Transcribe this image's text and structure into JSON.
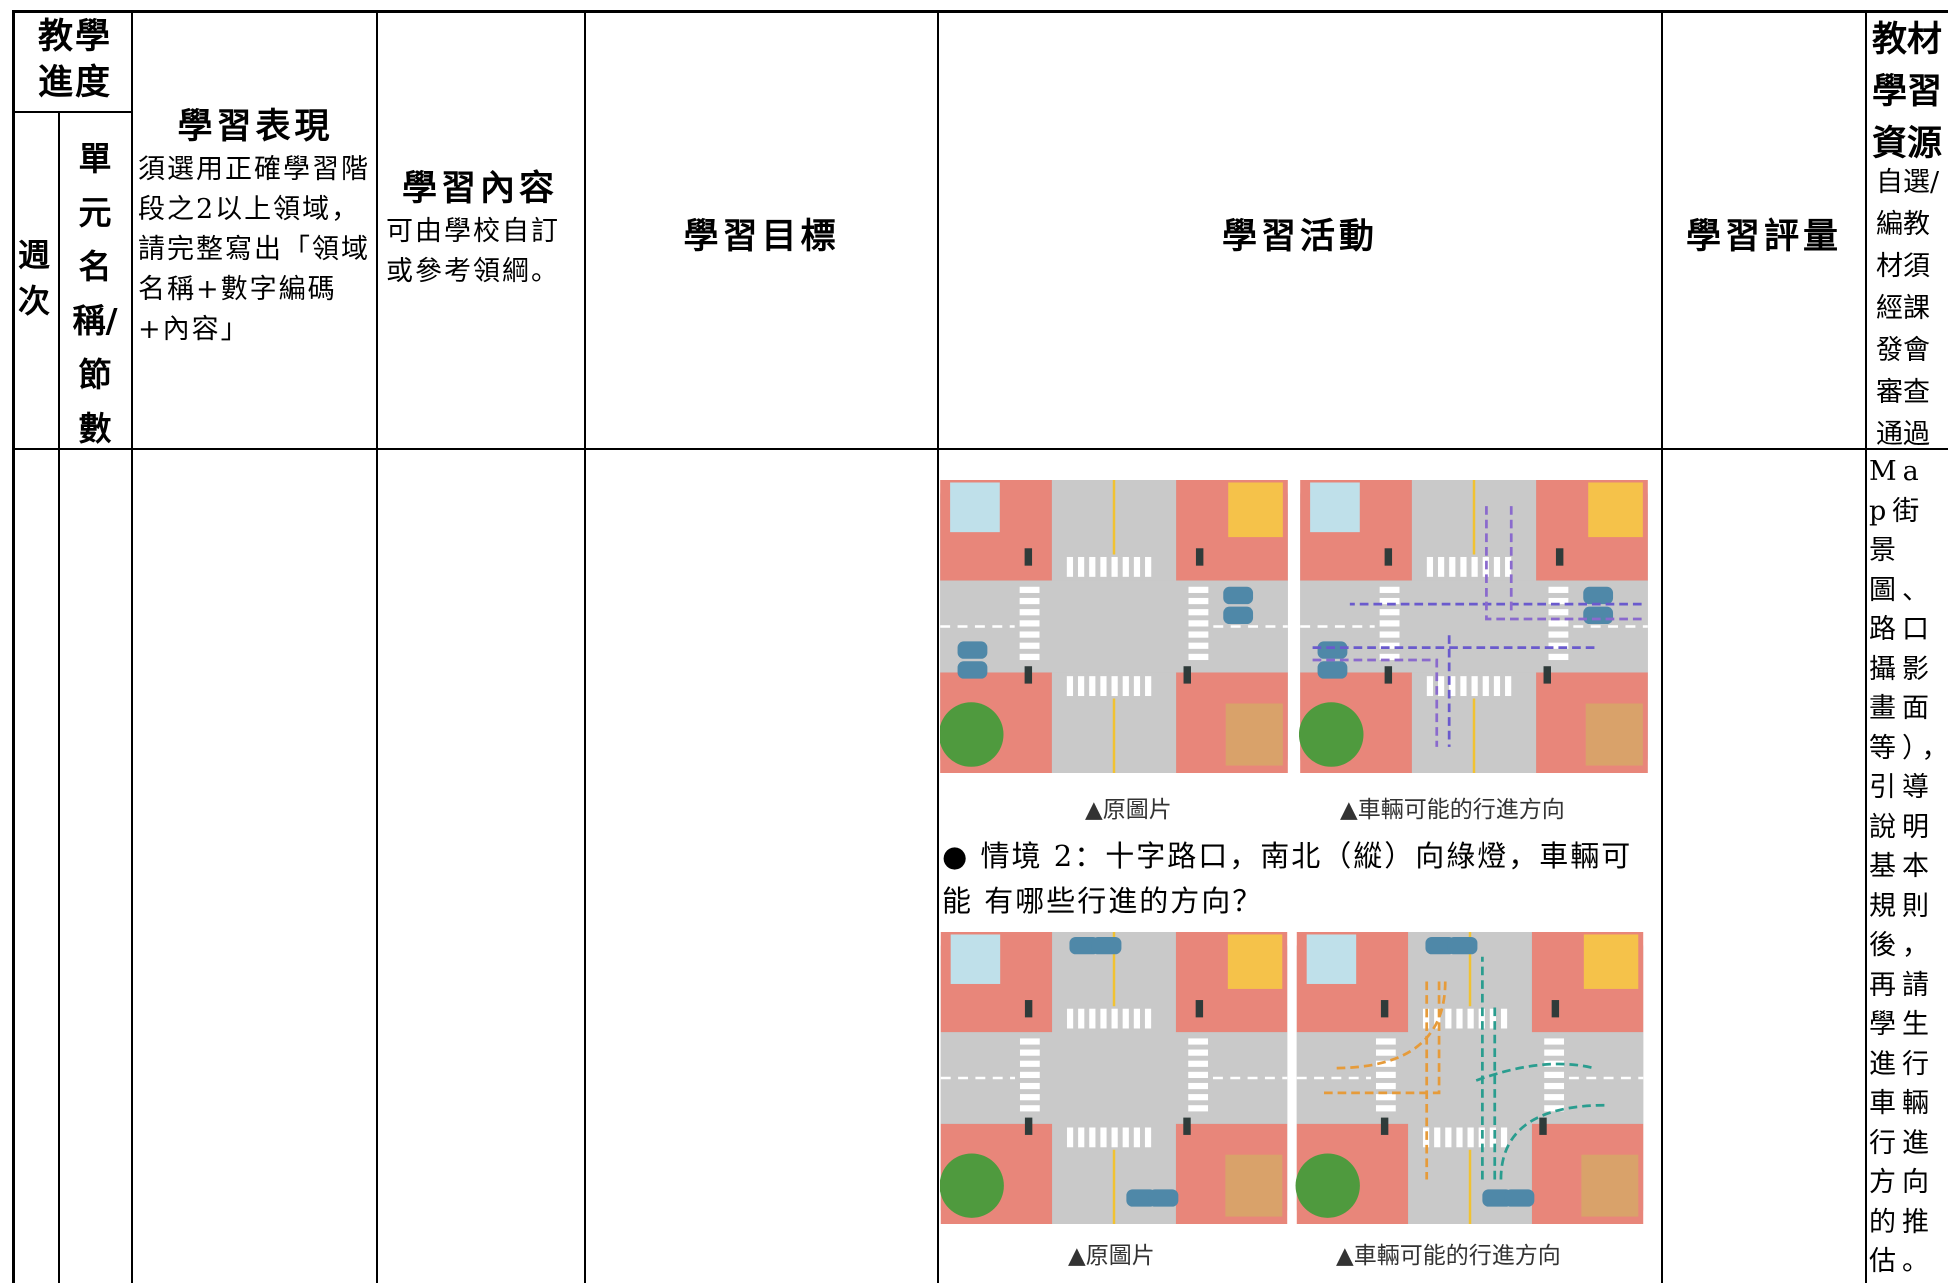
{
  "header": {
    "progress": "教學進度",
    "week": "週次",
    "unit": "單元名稱/節數",
    "performance_title": "學習表現",
    "performance_note": "須選用正確學習階段之2以上領域，請完整寫出「領域名稱+數字編碼+內容」",
    "content_title": "學習內容",
    "content_note": "可由學校自訂或參考領綱。",
    "goal": "學習目標",
    "activity": "學習活動",
    "assessment": "學習評量",
    "resources_title": "教材學習資源",
    "resources_note": "自選/編教材須經課發會審查通過"
  },
  "body": {
    "activity": {
      "caption_original_1": "▲原圖片",
      "caption_directions_1": "▲車輛可能的行進方向",
      "scenario": "● 情境 2：十字路口，南北（縱）向綠燈，車輛可能 有哪些行進的方向？",
      "caption_original_2": "▲原圖片",
      "caption_directions_2": "▲車輛可能的行進方向"
    },
    "resources": "Map街景圖、路口攝影畫面等），引導說明基本規則後，再請學生進行車輛行進方向的推估。"
  }
}
